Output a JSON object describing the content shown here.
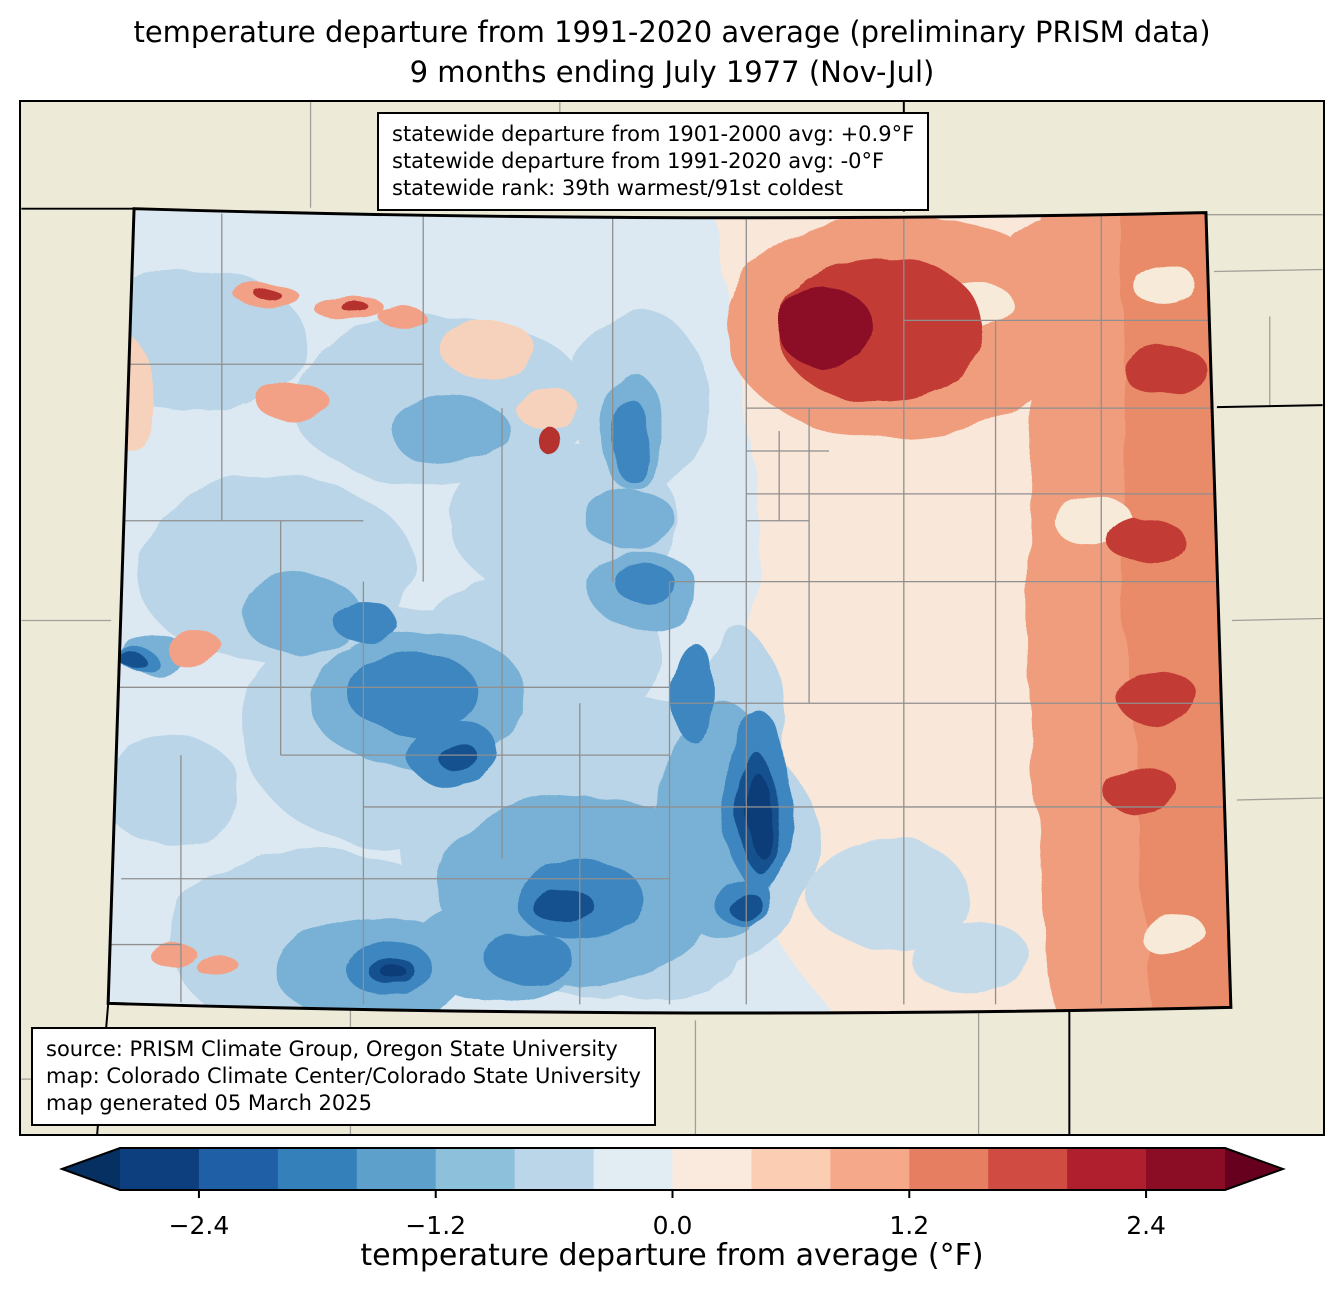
{
  "title": {
    "line1": "temperature departure from 1991-2020 average (preliminary PRISM data)",
    "line2": "9 months ending July 1977 (Nov-Jul)"
  },
  "stats_box": {
    "lines": [
      "statewide departure from 1901-2000 avg: +0.9°F",
      "statewide departure from 1991-2020 avg: -0°F",
      "statewide rank: 39th warmest/91st coldest"
    ]
  },
  "source_box": {
    "lines": [
      "source: PRISM Climate Group, Oregon State University",
      "map: Colorado Climate Center/Colorado State University",
      "map generated 05 March 2025"
    ]
  },
  "colorbar": {
    "label": "temperature departure from average (°F)",
    "ticks": [
      "−2.4",
      "−1.2",
      "0.0",
      "1.2",
      "2.4"
    ],
    "tick_values": [
      -2.4,
      -1.2,
      0.0,
      1.2,
      2.4
    ],
    "range": [
      -2.8,
      2.8
    ],
    "segment_colors": [
      "#0d3f7e",
      "#1f5fa6",
      "#3480bb",
      "#5da0cb",
      "#8dc0da",
      "#bad6e8",
      "#e1ecf3",
      "#faeadd",
      "#fbceb4",
      "#f5a98a",
      "#e67f62",
      "#d04c43",
      "#b01f2e",
      "#8a0c25"
    ],
    "extend_left": "#053061",
    "extend_right": "#67001f"
  },
  "map": {
    "background_color": "#edead8",
    "state_border_color": "#000000",
    "county_line_color": "#8f8f8f",
    "cool_core_color": "#0b3d79",
    "warm_core_color": "#8c1127"
  }
}
